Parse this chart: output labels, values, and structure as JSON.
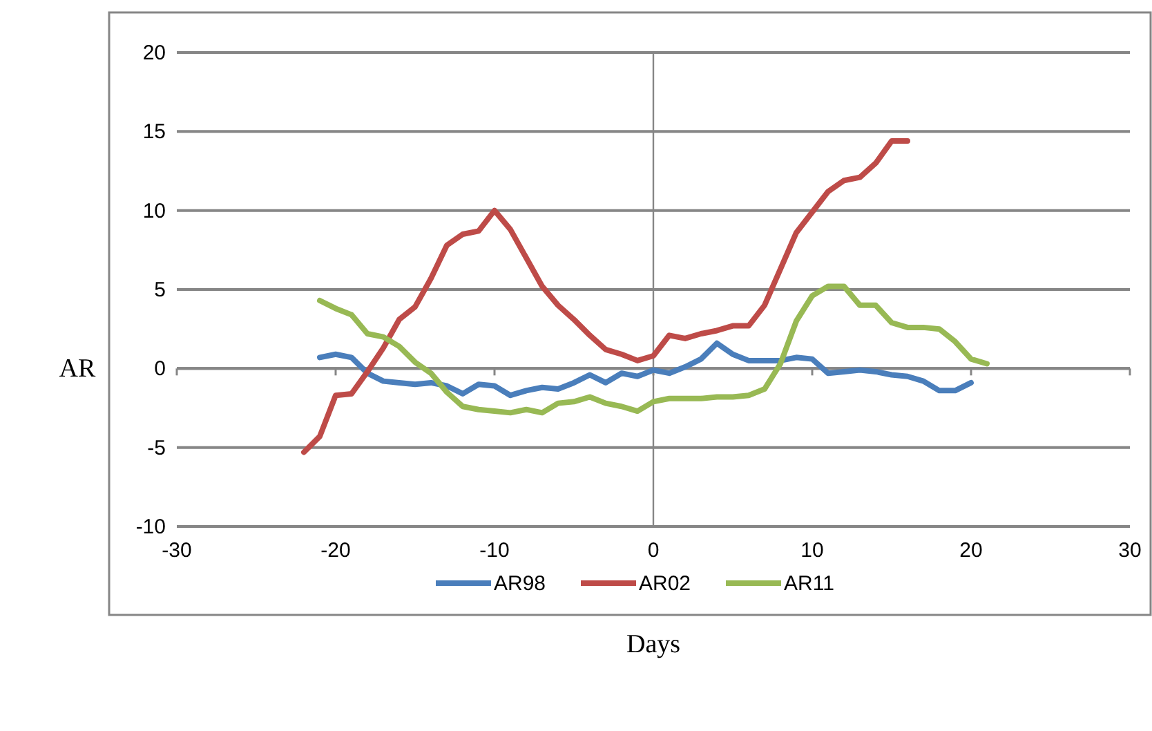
{
  "chart_data": {
    "type": "line",
    "xlabel": "Days",
    "ylabel": "AR",
    "xlim": [
      -30,
      30
    ],
    "xticks": [
      -30,
      -20,
      -10,
      0,
      10,
      20,
      30
    ],
    "ylim": [
      -10,
      20
    ],
    "yticks": [
      -10,
      -5,
      0,
      5,
      10,
      15,
      20
    ],
    "grid": "y",
    "legend": "bottom",
    "marker": "none",
    "line_style": "solid",
    "series": [
      {
        "name": "AR98",
        "color": "#4a7ebb",
        "x": [
          -21,
          -20,
          -19,
          -18,
          -17,
          -16,
          -15,
          -14,
          -13,
          -12,
          -11,
          -10,
          -9,
          -8,
          -7,
          -6,
          -5,
          -4,
          -3,
          -2,
          -1,
          0,
          1,
          2,
          3,
          4,
          5,
          6,
          7,
          8,
          9,
          10,
          11,
          12,
          13,
          14,
          15,
          16,
          17,
          18,
          19,
          20
        ],
        "values": [
          0.7,
          0.9,
          0.7,
          -0.3,
          -0.8,
          -0.9,
          -1.0,
          -0.9,
          -1.1,
          -1.6,
          -1.0,
          -1.1,
          -1.7,
          -1.4,
          -1.2,
          -1.3,
          -0.9,
          -0.4,
          -0.9,
          -0.3,
          -0.5,
          -0.1,
          -0.3,
          0.1,
          0.6,
          1.6,
          0.9,
          0.5,
          0.5,
          0.5,
          0.7,
          0.6,
          -0.3,
          -0.2,
          -0.1,
          -0.2,
          -0.4,
          -0.5,
          -0.8,
          -1.4,
          -1.4,
          -0.9
        ]
      },
      {
        "name": "AR02",
        "color": "#be4b48",
        "x": [
          -22,
          -21,
          -20,
          -19,
          -18,
          -17,
          -16,
          -15,
          -14,
          -13,
          -12,
          -11,
          -10,
          -9,
          -8,
          -7,
          -6,
          -5,
          -4,
          -3,
          -2,
          -1,
          0,
          1,
          2,
          3,
          4,
          5,
          6,
          7,
          8,
          9,
          10,
          11,
          12,
          13,
          14,
          15,
          16
        ],
        "values": [
          -5.3,
          -4.3,
          -1.7,
          -1.6,
          -0.2,
          1.3,
          3.1,
          3.9,
          5.7,
          7.8,
          8.5,
          8.7,
          10.0,
          8.8,
          7.0,
          5.2,
          4.0,
          3.1,
          2.1,
          1.2,
          0.9,
          0.5,
          0.8,
          2.1,
          1.9,
          2.2,
          2.4,
          2.7,
          2.7,
          4.0,
          6.3,
          8.6,
          9.9,
          11.2,
          11.9,
          12.1,
          13.0,
          14.4,
          14.4
        ]
      },
      {
        "name": "AR11",
        "color": "#98b954",
        "x": [
          -21,
          -20,
          -19,
          -18,
          -17,
          -16,
          -15,
          -14,
          -13,
          -12,
          -11,
          -10,
          -9,
          -8,
          -7,
          -6,
          -5,
          -4,
          -3,
          -2,
          -1,
          0,
          1,
          2,
          3,
          4,
          5,
          6,
          7,
          8,
          9,
          10,
          11,
          12,
          13,
          14,
          15,
          16,
          17,
          18,
          19,
          20,
          21
        ],
        "values": [
          4.3,
          3.8,
          3.4,
          2.2,
          2.0,
          1.4,
          0.4,
          -0.3,
          -1.5,
          -2.4,
          -2.6,
          -2.7,
          -2.8,
          -2.6,
          -2.8,
          -2.2,
          -2.1,
          -1.8,
          -2.2,
          -2.4,
          -2.7,
          -2.1,
          -1.9,
          -1.9,
          -1.9,
          -1.8,
          -1.8,
          -1.7,
          -1.3,
          0.3,
          3.0,
          4.6,
          5.2,
          5.2,
          4.0,
          4.0,
          2.9,
          2.6,
          2.6,
          2.5,
          1.7,
          0.6,
          0.3
        ]
      }
    ]
  }
}
